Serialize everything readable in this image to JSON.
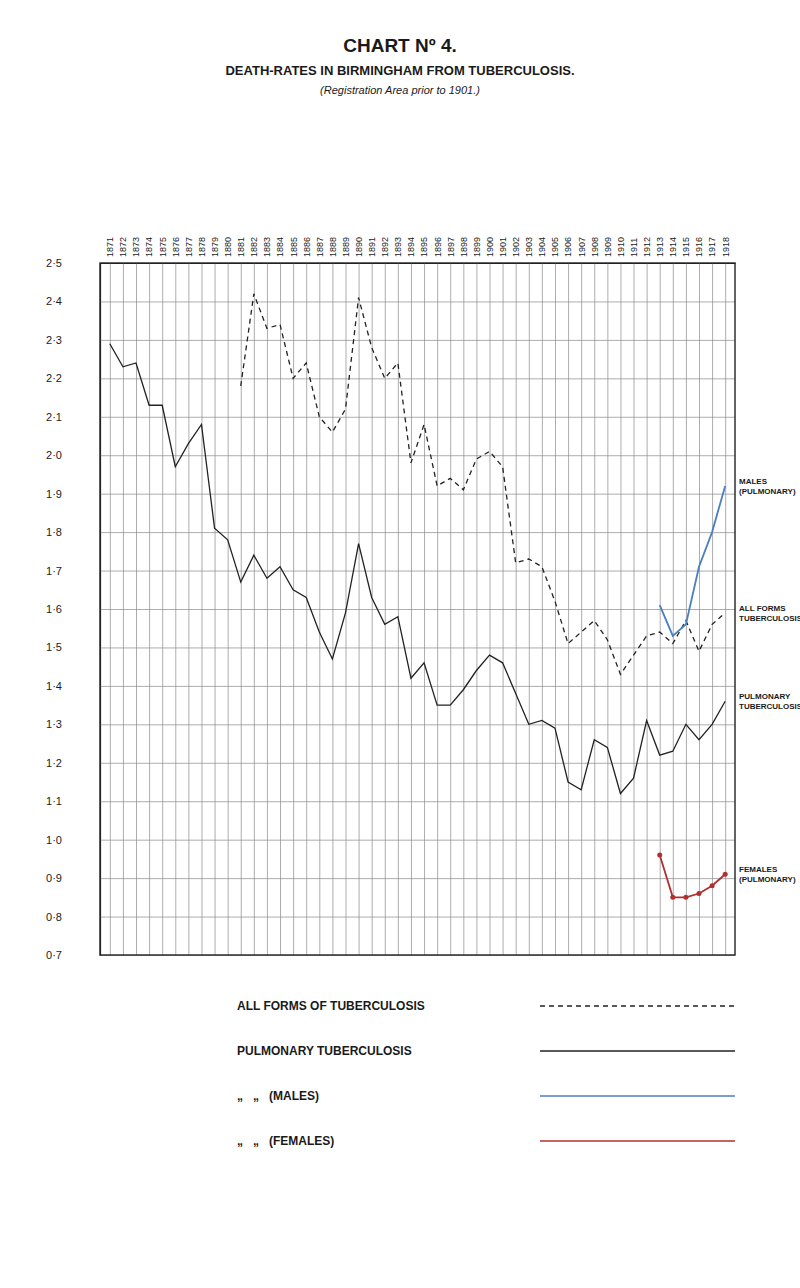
{
  "chart_data": {
    "type": "line",
    "title": "CHART Nº 4.",
    "subtitle": [
      "DEATH-RATES IN BIRMINGHAM FROM TUBERCULOSIS.",
      "(Registration Area prior to 1901.)"
    ],
    "categories": [
      "1871",
      "1872",
      "1873",
      "1874",
      "1875",
      "1876",
      "1877",
      "1878",
      "1879",
      "1880",
      "1881",
      "1882",
      "1883",
      "1884",
      "1885",
      "1886",
      "1887",
      "1888",
      "1889",
      "1890",
      "1891",
      "1892",
      "1893",
      "1894",
      "1895",
      "1896",
      "1897",
      "1898",
      "1899",
      "1900",
      "1901",
      "1902",
      "1903",
      "1904",
      "1905",
      "1906",
      "1907",
      "1908",
      "1909",
      "1910",
      "1911",
      "1912",
      "1913",
      "1914",
      "1915",
      "1916",
      "1917",
      "1918"
    ],
    "ylim": [
      0.7,
      2.5
    ],
    "yticks": [
      {
        "value": 2.5,
        "label": "2·5"
      },
      {
        "value": 2.4,
        "label": "2·4"
      },
      {
        "value": 2.3,
        "label": "2·3"
      },
      {
        "value": 2.2,
        "label": "2·2"
      },
      {
        "value": 2.1,
        "label": "2·1"
      },
      {
        "value": 2.0,
        "label": "2·0"
      },
      {
        "value": 1.9,
        "label": "1·9"
      },
      {
        "value": 1.8,
        "label": "1·8"
      },
      {
        "value": 1.7,
        "label": "1·7"
      },
      {
        "value": 1.6,
        "label": "1·6"
      },
      {
        "value": 1.5,
        "label": "1·5"
      },
      {
        "value": 1.4,
        "label": "1·4"
      },
      {
        "value": 1.3,
        "label": "1·3"
      },
      {
        "value": 1.2,
        "label": "1·2"
      },
      {
        "value": 1.1,
        "label": "1·1"
      },
      {
        "value": 1.0,
        "label": "1·0"
      },
      {
        "value": 0.9,
        "label": "0·9"
      },
      {
        "value": 0.8,
        "label": "0·8"
      },
      {
        "value": 0.7,
        "label": "0·7"
      }
    ],
    "grid": true,
    "series": [
      {
        "name": "ALL FORMS OF TUBERCULOSIS",
        "label": [
          "ALL FORMS",
          "TUBERCULOSIS"
        ],
        "color": "#222222",
        "line_style": "dashed",
        "values": [
          null,
          null,
          null,
          null,
          null,
          null,
          null,
          null,
          null,
          null,
          2.18,
          2.42,
          2.33,
          2.34,
          2.2,
          2.24,
          2.1,
          2.06,
          2.12,
          2.41,
          2.28,
          2.2,
          2.24,
          1.98,
          2.08,
          1.92,
          1.94,
          1.91,
          1.99,
          2.01,
          1.97,
          1.72,
          1.73,
          1.71,
          1.62,
          1.51,
          1.54,
          1.57,
          1.52,
          1.43,
          1.48,
          1.53,
          1.54,
          1.51,
          1.57,
          1.49,
          1.56,
          1.59
        ]
      },
      {
        "name": "PULMONARY TUBERCULOSIS",
        "label": [
          "PULMONARY",
          "TUBERCULOSIS"
        ],
        "color": "#222222",
        "line_style": "solid",
        "values": [
          2.29,
          2.23,
          2.24,
          2.13,
          2.13,
          1.97,
          2.03,
          2.08,
          1.81,
          1.78,
          1.67,
          1.74,
          1.68,
          1.71,
          1.65,
          1.63,
          1.54,
          1.47,
          1.59,
          1.77,
          1.63,
          1.56,
          1.58,
          1.42,
          1.46,
          1.35,
          1.35,
          1.39,
          1.44,
          1.48,
          1.46,
          1.38,
          1.3,
          1.31,
          1.29,
          1.15,
          1.13,
          1.26,
          1.24,
          1.12,
          1.16,
          1.31,
          1.22,
          1.23,
          1.3,
          1.26,
          1.3,
          1.36
        ]
      },
      {
        "name": "„   „   (MALES)",
        "label": [
          "MALES",
          "(PULMONARY)"
        ],
        "color": "#4a7fbf",
        "line_style": "solid",
        "values": [
          null,
          null,
          null,
          null,
          null,
          null,
          null,
          null,
          null,
          null,
          null,
          null,
          null,
          null,
          null,
          null,
          null,
          null,
          null,
          null,
          null,
          null,
          null,
          null,
          null,
          null,
          null,
          null,
          null,
          null,
          null,
          null,
          null,
          null,
          null,
          null,
          null,
          null,
          null,
          null,
          null,
          null,
          1.61,
          1.53,
          1.56,
          1.71,
          1.8,
          1.92
        ]
      },
      {
        "name": "„   „   (FEMALES)",
        "label": [
          "FEMALES",
          "(PULMONARY)"
        ],
        "color": "#b03030",
        "line_style": "solid",
        "marker": "circle",
        "values": [
          null,
          null,
          null,
          null,
          null,
          null,
          null,
          null,
          null,
          null,
          null,
          null,
          null,
          null,
          null,
          null,
          null,
          null,
          null,
          null,
          null,
          null,
          null,
          null,
          null,
          null,
          null,
          null,
          null,
          null,
          null,
          null,
          null,
          null,
          null,
          null,
          null,
          null,
          null,
          null,
          null,
          null,
          0.96,
          0.85,
          0.85,
          0.86,
          0.88,
          0.91
        ]
      }
    ]
  }
}
